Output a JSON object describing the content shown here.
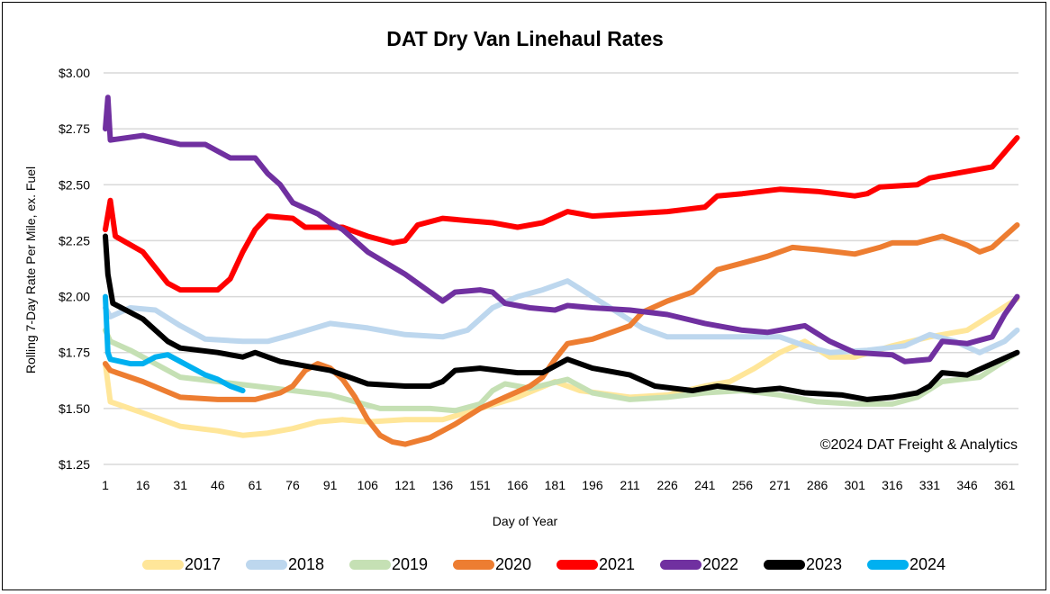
{
  "chart_data": {
    "type": "line",
    "title": "DAT Dry Van Linehaul Rates",
    "xlabel": "Day of Year",
    "ylabel": "Rolling 7-Day Rate Per Mile, ex. Fuel",
    "annotation": "©2024 DAT Freight & Analytics",
    "xlim": [
      1,
      366
    ],
    "ylim": [
      1.25,
      3.0
    ],
    "x_ticks": [
      "1",
      "16",
      "31",
      "46",
      "61",
      "76",
      "91",
      "106",
      "121",
      "136",
      "151",
      "166",
      "181",
      "196",
      "211",
      "226",
      "241",
      "256",
      "271",
      "286",
      "301",
      "316",
      "331",
      "346",
      "361"
    ],
    "y_ticks": [
      "$1.25",
      "$1.50",
      "$1.75",
      "$2.00",
      "$2.25",
      "$2.50",
      "$2.75",
      "$3.00"
    ],
    "y_tick_values": [
      1.25,
      1.5,
      1.75,
      2.0,
      2.25,
      2.5,
      2.75,
      3.0
    ],
    "grid": "horizontal",
    "legend_position": "bottom",
    "series": [
      {
        "name": "2017",
        "color": "#FFE699",
        "points": [
          [
            1,
            1.7
          ],
          [
            3,
            1.53
          ],
          [
            16,
            1.48
          ],
          [
            31,
            1.42
          ],
          [
            46,
            1.4
          ],
          [
            56,
            1.38
          ],
          [
            66,
            1.39
          ],
          [
            76,
            1.41
          ],
          [
            86,
            1.44
          ],
          [
            96,
            1.45
          ],
          [
            106,
            1.44
          ],
          [
            121,
            1.45
          ],
          [
            136,
            1.45
          ],
          [
            151,
            1.5
          ],
          [
            166,
            1.55
          ],
          [
            181,
            1.62
          ],
          [
            191,
            1.58
          ],
          [
            211,
            1.55
          ],
          [
            226,
            1.56
          ],
          [
            241,
            1.6
          ],
          [
            251,
            1.62
          ],
          [
            261,
            1.68
          ],
          [
            271,
            1.75
          ],
          [
            281,
            1.8
          ],
          [
            291,
            1.73
          ],
          [
            301,
            1.73
          ],
          [
            316,
            1.78
          ],
          [
            331,
            1.82
          ],
          [
            346,
            1.85
          ],
          [
            356,
            1.92
          ],
          [
            366,
            1.99
          ]
        ]
      },
      {
        "name": "2018",
        "color": "#BDD7EE",
        "points": [
          [
            1,
            1.95
          ],
          [
            3,
            1.91
          ],
          [
            11,
            1.95
          ],
          [
            21,
            1.94
          ],
          [
            31,
            1.87
          ],
          [
            41,
            1.81
          ],
          [
            56,
            1.8
          ],
          [
            66,
            1.8
          ],
          [
            76,
            1.83
          ],
          [
            91,
            1.88
          ],
          [
            106,
            1.86
          ],
          [
            121,
            1.83
          ],
          [
            136,
            1.82
          ],
          [
            146,
            1.85
          ],
          [
            156,
            1.95
          ],
          [
            166,
            2.0
          ],
          [
            176,
            2.03
          ],
          [
            186,
            2.07
          ],
          [
            196,
            2.0
          ],
          [
            206,
            1.93
          ],
          [
            216,
            1.86
          ],
          [
            226,
            1.82
          ],
          [
            241,
            1.82
          ],
          [
            256,
            1.82
          ],
          [
            271,
            1.82
          ],
          [
            281,
            1.78
          ],
          [
            291,
            1.75
          ],
          [
            306,
            1.76
          ],
          [
            321,
            1.78
          ],
          [
            331,
            1.83
          ],
          [
            341,
            1.8
          ],
          [
            351,
            1.75
          ],
          [
            361,
            1.8
          ],
          [
            366,
            1.85
          ]
        ]
      },
      {
        "name": "2019",
        "color": "#C5E0B4",
        "points": [
          [
            1,
            1.85
          ],
          [
            3,
            1.8
          ],
          [
            11,
            1.76
          ],
          [
            21,
            1.7
          ],
          [
            31,
            1.64
          ],
          [
            46,
            1.62
          ],
          [
            61,
            1.6
          ],
          [
            76,
            1.58
          ],
          [
            91,
            1.56
          ],
          [
            101,
            1.53
          ],
          [
            111,
            1.5
          ],
          [
            131,
            1.5
          ],
          [
            141,
            1.49
          ],
          [
            151,
            1.52
          ],
          [
            156,
            1.58
          ],
          [
            161,
            1.61
          ],
          [
            171,
            1.59
          ],
          [
            186,
            1.63
          ],
          [
            196,
            1.57
          ],
          [
            211,
            1.54
          ],
          [
            226,
            1.55
          ],
          [
            241,
            1.57
          ],
          [
            256,
            1.58
          ],
          [
            271,
            1.56
          ],
          [
            286,
            1.53
          ],
          [
            301,
            1.52
          ],
          [
            316,
            1.52
          ],
          [
            326,
            1.55
          ],
          [
            336,
            1.62
          ],
          [
            351,
            1.64
          ],
          [
            366,
            1.75
          ]
        ]
      },
      {
        "name": "2020",
        "color": "#ED7D31",
        "points": [
          [
            1,
            1.7
          ],
          [
            3,
            1.67
          ],
          [
            16,
            1.62
          ],
          [
            31,
            1.55
          ],
          [
            46,
            1.54
          ],
          [
            61,
            1.54
          ],
          [
            71,
            1.57
          ],
          [
            76,
            1.6
          ],
          [
            81,
            1.67
          ],
          [
            86,
            1.7
          ],
          [
            91,
            1.68
          ],
          [
            96,
            1.63
          ],
          [
            101,
            1.55
          ],
          [
            106,
            1.45
          ],
          [
            111,
            1.38
          ],
          [
            116,
            1.35
          ],
          [
            121,
            1.34
          ],
          [
            131,
            1.37
          ],
          [
            141,
            1.43
          ],
          [
            151,
            1.5
          ],
          [
            161,
            1.55
          ],
          [
            171,
            1.6
          ],
          [
            176,
            1.64
          ],
          [
            181,
            1.72
          ],
          [
            186,
            1.79
          ],
          [
            196,
            1.81
          ],
          [
            206,
            1.85
          ],
          [
            211,
            1.87
          ],
          [
            216,
            1.93
          ],
          [
            226,
            1.98
          ],
          [
            236,
            2.02
          ],
          [
            246,
            2.12
          ],
          [
            256,
            2.15
          ],
          [
            266,
            2.18
          ],
          [
            276,
            2.22
          ],
          [
            286,
            2.21
          ],
          [
            301,
            2.19
          ],
          [
            311,
            2.22
          ],
          [
            316,
            2.24
          ],
          [
            326,
            2.24
          ],
          [
            336,
            2.27
          ],
          [
            346,
            2.23
          ],
          [
            351,
            2.2
          ],
          [
            356,
            2.22
          ],
          [
            366,
            2.32
          ]
        ]
      },
      {
        "name": "2021",
        "color": "#FF0000",
        "points": [
          [
            1,
            2.3
          ],
          [
            3,
            2.43
          ],
          [
            5,
            2.27
          ],
          [
            16,
            2.2
          ],
          [
            26,
            2.06
          ],
          [
            31,
            2.03
          ],
          [
            46,
            2.03
          ],
          [
            51,
            2.08
          ],
          [
            56,
            2.2
          ],
          [
            61,
            2.3
          ],
          [
            66,
            2.36
          ],
          [
            76,
            2.35
          ],
          [
            81,
            2.31
          ],
          [
            91,
            2.31
          ],
          [
            96,
            2.31
          ],
          [
            106,
            2.27
          ],
          [
            116,
            2.24
          ],
          [
            121,
            2.25
          ],
          [
            126,
            2.32
          ],
          [
            136,
            2.35
          ],
          [
            146,
            2.34
          ],
          [
            156,
            2.33
          ],
          [
            166,
            2.31
          ],
          [
            176,
            2.33
          ],
          [
            186,
            2.38
          ],
          [
            196,
            2.36
          ],
          [
            211,
            2.37
          ],
          [
            226,
            2.38
          ],
          [
            241,
            2.4
          ],
          [
            246,
            2.45
          ],
          [
            256,
            2.46
          ],
          [
            271,
            2.48
          ],
          [
            286,
            2.47
          ],
          [
            301,
            2.45
          ],
          [
            306,
            2.46
          ],
          [
            311,
            2.49
          ],
          [
            326,
            2.5
          ],
          [
            331,
            2.53
          ],
          [
            346,
            2.56
          ],
          [
            356,
            2.58
          ],
          [
            366,
            2.71
          ]
        ]
      },
      {
        "name": "2022",
        "color": "#7030A0",
        "points": [
          [
            1,
            2.75
          ],
          [
            2,
            2.89
          ],
          [
            3,
            2.7
          ],
          [
            16,
            2.72
          ],
          [
            31,
            2.68
          ],
          [
            41,
            2.68
          ],
          [
            46,
            2.65
          ],
          [
            51,
            2.62
          ],
          [
            61,
            2.62
          ],
          [
            66,
            2.55
          ],
          [
            71,
            2.5
          ],
          [
            76,
            2.42
          ],
          [
            86,
            2.37
          ],
          [
            91,
            2.33
          ],
          [
            96,
            2.3
          ],
          [
            106,
            2.2
          ],
          [
            121,
            2.1
          ],
          [
            131,
            2.02
          ],
          [
            136,
            1.98
          ],
          [
            141,
            2.02
          ],
          [
            151,
            2.03
          ],
          [
            156,
            2.02
          ],
          [
            161,
            1.97
          ],
          [
            171,
            1.95
          ],
          [
            181,
            1.94
          ],
          [
            186,
            1.96
          ],
          [
            196,
            1.95
          ],
          [
            211,
            1.94
          ],
          [
            226,
            1.92
          ],
          [
            241,
            1.88
          ],
          [
            256,
            1.85
          ],
          [
            266,
            1.84
          ],
          [
            281,
            1.87
          ],
          [
            291,
            1.8
          ],
          [
            301,
            1.75
          ],
          [
            316,
            1.74
          ],
          [
            321,
            1.71
          ],
          [
            331,
            1.72
          ],
          [
            336,
            1.8
          ],
          [
            346,
            1.79
          ],
          [
            356,
            1.82
          ],
          [
            361,
            1.92
          ],
          [
            366,
            2.0
          ]
        ]
      },
      {
        "name": "2023",
        "color": "#000000",
        "points": [
          [
            1,
            2.27
          ],
          [
            2,
            2.1
          ],
          [
            4,
            1.97
          ],
          [
            16,
            1.9
          ],
          [
            26,
            1.8
          ],
          [
            31,
            1.77
          ],
          [
            46,
            1.75
          ],
          [
            56,
            1.73
          ],
          [
            61,
            1.75
          ],
          [
            71,
            1.71
          ],
          [
            91,
            1.67
          ],
          [
            106,
            1.61
          ],
          [
            121,
            1.6
          ],
          [
            131,
            1.6
          ],
          [
            136,
            1.62
          ],
          [
            141,
            1.67
          ],
          [
            151,
            1.68
          ],
          [
            166,
            1.66
          ],
          [
            176,
            1.66
          ],
          [
            186,
            1.72
          ],
          [
            196,
            1.68
          ],
          [
            211,
            1.65
          ],
          [
            221,
            1.6
          ],
          [
            236,
            1.58
          ],
          [
            246,
            1.6
          ],
          [
            261,
            1.58
          ],
          [
            271,
            1.59
          ],
          [
            281,
            1.57
          ],
          [
            296,
            1.56
          ],
          [
            306,
            1.54
          ],
          [
            316,
            1.55
          ],
          [
            326,
            1.57
          ],
          [
            331,
            1.6
          ],
          [
            336,
            1.66
          ],
          [
            346,
            1.65
          ],
          [
            356,
            1.7
          ],
          [
            366,
            1.75
          ]
        ]
      },
      {
        "name": "2024",
        "color": "#00B0F0",
        "points": [
          [
            1,
            2.0
          ],
          [
            2,
            1.75
          ],
          [
            3,
            1.72
          ],
          [
            11,
            1.7
          ],
          [
            16,
            1.7
          ],
          [
            21,
            1.73
          ],
          [
            26,
            1.74
          ],
          [
            31,
            1.71
          ],
          [
            36,
            1.68
          ],
          [
            41,
            1.65
          ],
          [
            46,
            1.63
          ],
          [
            51,
            1.6
          ],
          [
            56,
            1.58
          ]
        ]
      }
    ]
  }
}
